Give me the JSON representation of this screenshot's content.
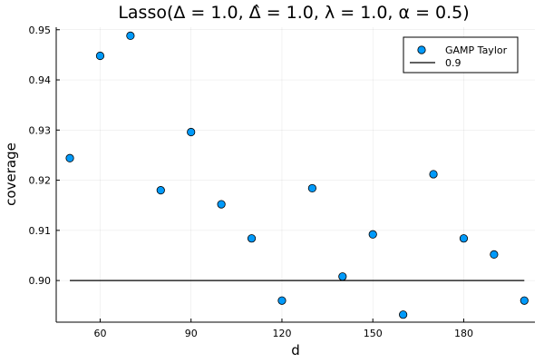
{
  "chart_data": {
    "type": "scatter",
    "title": "Lasso(Δ = 1.0, Δ̂ = 1.0, λ = 1.0, α = 0.5)",
    "xlabel": "d",
    "ylabel": "coverage",
    "xlim": [
      45.5,
      203.5
    ],
    "ylim": [
      0.8917,
      0.9505
    ],
    "xticks": [
      60,
      90,
      120,
      150,
      180
    ],
    "yticks": [
      0.9,
      0.91,
      0.92,
      0.93,
      0.94,
      0.95
    ],
    "ytick_labels": [
      "0.90",
      "0.91",
      "0.92",
      "0.93",
      "0.94",
      "0.95"
    ],
    "grid": true,
    "legend_position": "top-right",
    "series": [
      {
        "name": "GAMP Taylor",
        "kind": "scatter",
        "color": "#009AFA",
        "x": [
          50,
          60,
          70,
          80,
          90,
          100,
          110,
          120,
          130,
          140,
          150,
          160,
          170,
          180,
          190,
          200
        ],
        "y": [
          0.9244,
          0.9448,
          0.9488,
          0.918,
          0.9296,
          0.9152,
          0.9084,
          0.896,
          0.9184,
          0.9008,
          0.9092,
          0.8932,
          0.9212,
          0.9084,
          0.9052,
          0.896
        ]
      },
      {
        "name": "0.9",
        "kind": "line",
        "color": "#000000",
        "x": [
          50,
          200
        ],
        "y": [
          0.9,
          0.9
        ]
      }
    ]
  }
}
